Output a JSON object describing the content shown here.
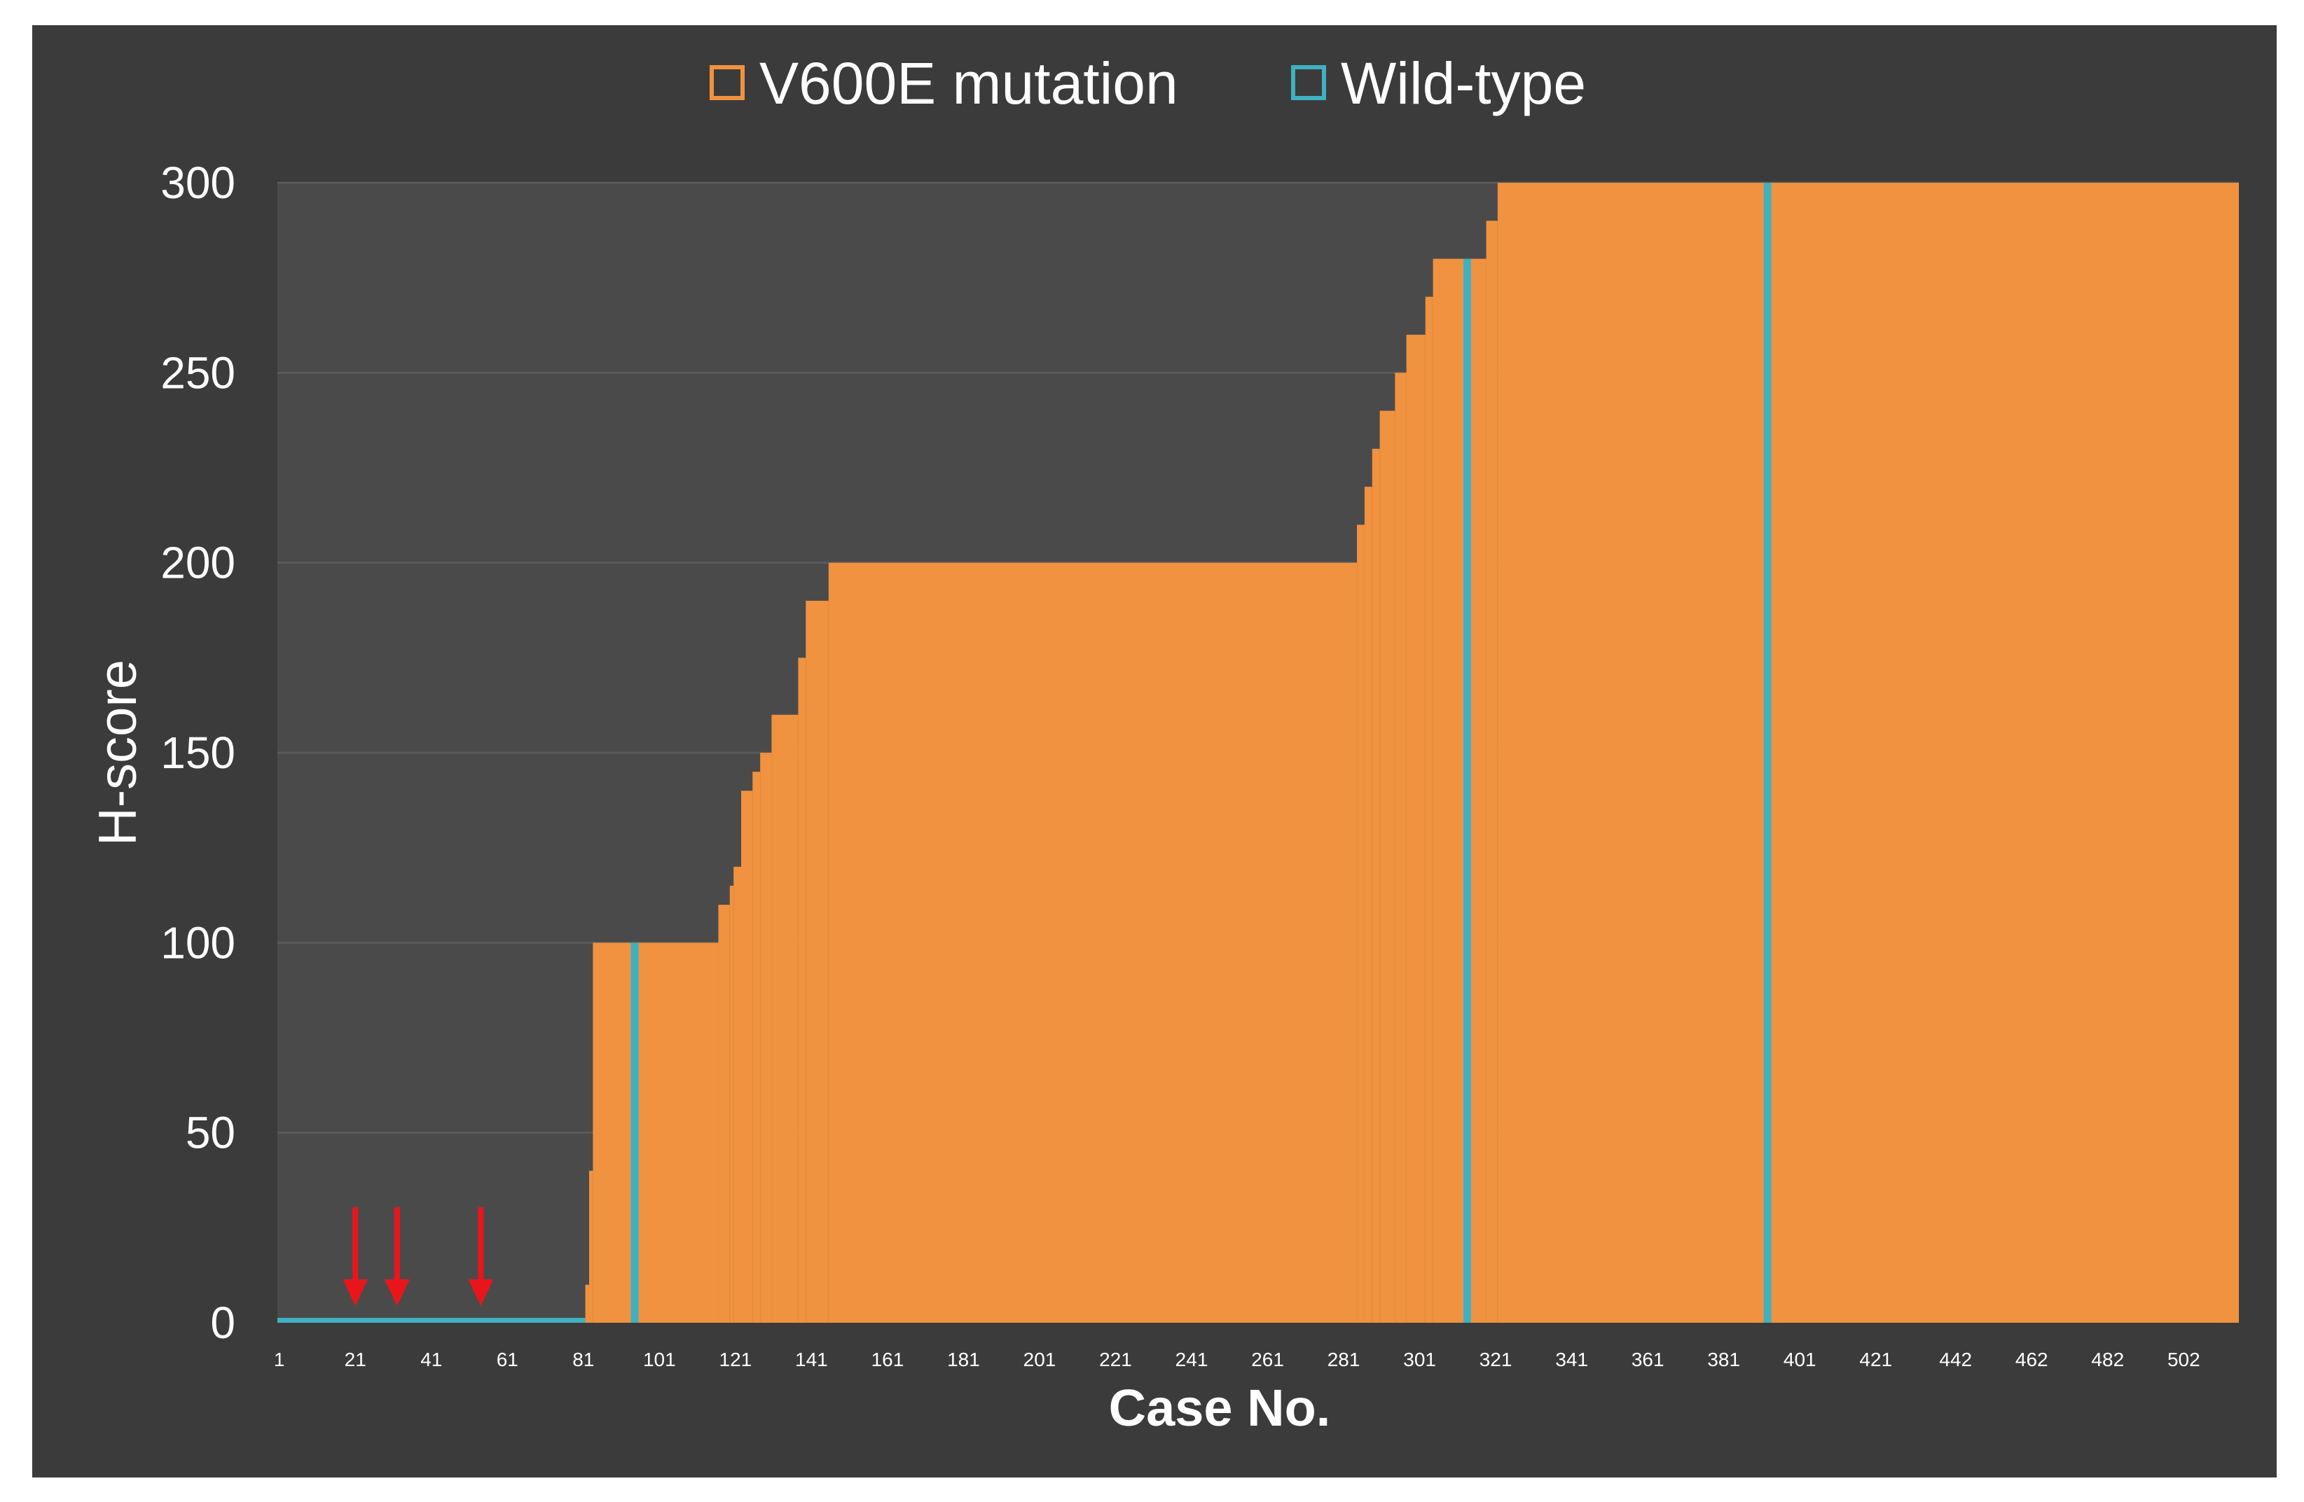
{
  "colors": {
    "background": "#3b3b3b",
    "plot_background": "#4a4a4a",
    "mutation": "#f0923f",
    "wild_type": "#3fb1c1",
    "text": "#ffffff",
    "arrow": "#e8161b",
    "grid": "#5a5a5a"
  },
  "chart_data": {
    "type": "bar",
    "title": "",
    "xlabel": "Case No.",
    "ylabel": "H-score",
    "ylim": [
      0,
      300
    ],
    "yticks": [
      0,
      50,
      100,
      150,
      200,
      250,
      300
    ],
    "xlim": [
      1,
      516
    ],
    "xtick_labels": [
      "1",
      "21",
      "41",
      "61",
      "81",
      "101",
      "121",
      "141",
      "161",
      "181",
      "201",
      "221",
      "241",
      "261",
      "281",
      "301",
      "321",
      "341",
      "361",
      "381",
      "401",
      "421",
      "442",
      "462",
      "482",
      "502"
    ],
    "grid": "horizontal",
    "legend_position": "top-center",
    "series": [
      {
        "name": "V600E mutation",
        "color": "#f0923f"
      },
      {
        "name": "Wild-type",
        "color": "#3fb1c1"
      }
    ],
    "mutation_hscore_steps": [
      {
        "from": 1,
        "to": 81,
        "value": 0
      },
      {
        "from": 82,
        "to": 82,
        "value": 10
      },
      {
        "from": 83,
        "to": 83,
        "value": 40
      },
      {
        "from": 84,
        "to": 116,
        "value": 100
      },
      {
        "from": 117,
        "to": 119,
        "value": 110
      },
      {
        "from": 120,
        "to": 120,
        "value": 115
      },
      {
        "from": 121,
        "to": 122,
        "value": 120
      },
      {
        "from": 123,
        "to": 125,
        "value": 140
      },
      {
        "from": 126,
        "to": 127,
        "value": 145
      },
      {
        "from": 128,
        "to": 130,
        "value": 150
      },
      {
        "from": 131,
        "to": 137,
        "value": 160
      },
      {
        "from": 138,
        "to": 139,
        "value": 175
      },
      {
        "from": 140,
        "to": 145,
        "value": 190
      },
      {
        "from": 146,
        "to": 284,
        "value": 200
      },
      {
        "from": 285,
        "to": 286,
        "value": 210
      },
      {
        "from": 287,
        "to": 288,
        "value": 220
      },
      {
        "from": 289,
        "to": 290,
        "value": 230
      },
      {
        "from": 291,
        "to": 294,
        "value": 240
      },
      {
        "from": 295,
        "to": 297,
        "value": 250
      },
      {
        "from": 298,
        "to": 302,
        "value": 260
      },
      {
        "from": 303,
        "to": 304,
        "value": 270
      },
      {
        "from": 305,
        "to": 318,
        "value": 280
      },
      {
        "from": 319,
        "to": 321,
        "value": 290
      },
      {
        "from": 322,
        "to": 516,
        "value": 300
      }
    ],
    "wild_type_cases": [
      {
        "from": 1,
        "to": 81,
        "value": 0
      },
      {
        "from": 94,
        "to": 95,
        "value": 100
      },
      {
        "from": 313,
        "to": 314,
        "value": 280
      },
      {
        "from": 392,
        "to": 393,
        "value": 300
      }
    ],
    "arrow_cases": [
      21,
      32,
      54
    ]
  }
}
